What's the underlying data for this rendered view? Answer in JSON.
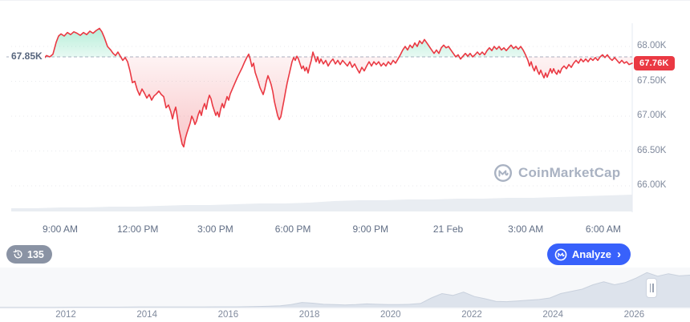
{
  "chart_data": {
    "type": "line",
    "symbol_watermark": "CoinMarketCap",
    "baseline": {
      "value": 67850,
      "label": "67.85K"
    },
    "current": {
      "value": 67760,
      "label": "67.76K"
    },
    "y_axis": {
      "ticks": [
        {
          "value": 68000,
          "label": "68.00K"
        },
        {
          "value": 67500,
          "label": "67.50K"
        },
        {
          "value": 67000,
          "label": "67.00K"
        },
        {
          "value": 66500,
          "label": "66.50K"
        },
        {
          "value": 66000,
          "label": "66.00K"
        }
      ],
      "range": [
        65900,
        68350
      ]
    },
    "x_axis": {
      "ticks": [
        "9:00 AM",
        "12:00 PM",
        "3:00 PM",
        "6:00 PM",
        "9:00 PM",
        "21 Feb",
        "3:00 AM",
        "6:00 AM"
      ]
    },
    "price_points": [
      [
        55,
        67830
      ],
      [
        58,
        67870
      ],
      [
        62,
        67850
      ],
      [
        66,
        67890
      ],
      [
        70,
        68060
      ],
      [
        73,
        68150
      ],
      [
        76,
        68180
      ],
      [
        80,
        68150
      ],
      [
        84,
        68200
      ],
      [
        88,
        68170
      ],
      [
        92,
        68210
      ],
      [
        96,
        68190
      ],
      [
        100,
        68160
      ],
      [
        104,
        68200
      ],
      [
        108,
        68170
      ],
      [
        112,
        68220
      ],
      [
        116,
        68190
      ],
      [
        120,
        68230
      ],
      [
        124,
        68260
      ],
      [
        127,
        68210
      ],
      [
        130,
        68130
      ],
      [
        134,
        68000
      ],
      [
        138,
        67950
      ],
      [
        141,
        67900
      ],
      [
        144,
        67870
      ],
      [
        147,
        67920
      ],
      [
        150,
        67860
      ],
      [
        153,
        67800
      ],
      [
        156,
        67840
      ],
      [
        159,
        67780
      ],
      [
        162,
        67650
      ],
      [
        165,
        67480
      ],
      [
        168,
        67500
      ],
      [
        171,
        67380
      ],
      [
        174,
        67300
      ],
      [
        177,
        67390
      ],
      [
        180,
        67330
      ],
      [
        183,
        67260
      ],
      [
        186,
        67310
      ],
      [
        189,
        67230
      ],
      [
        192,
        67290
      ],
      [
        195,
        67320
      ],
      [
        198,
        67360
      ],
      [
        201,
        67310
      ],
      [
        204,
        67280
      ],
      [
        207,
        67120
      ],
      [
        210,
        67160
      ],
      [
        213,
        67060
      ],
      [
        215,
        66960
      ],
      [
        217,
        67060
      ],
      [
        219,
        67130
      ],
      [
        221,
        66990
      ],
      [
        223,
        66820
      ],
      [
        225,
        66710
      ],
      [
        227,
        66600
      ],
      [
        229,
        66560
      ],
      [
        231,
        66680
      ],
      [
        233,
        66760
      ],
      [
        235,
        66830
      ],
      [
        237,
        66900
      ],
      [
        239,
        67000
      ],
      [
        241,
        66950
      ],
      [
        243,
        66880
      ],
      [
        245,
        66930
      ],
      [
        247,
        67020
      ],
      [
        249,
        67080
      ],
      [
        251,
        67010
      ],
      [
        253,
        67120
      ],
      [
        255,
        67180
      ],
      [
        257,
        67100
      ],
      [
        259,
        67220
      ],
      [
        261,
        67300
      ],
      [
        263,
        67250
      ],
      [
        265,
        67150
      ],
      [
        267,
        67080
      ],
      [
        269,
        67010
      ],
      [
        271,
        67060
      ],
      [
        273,
        66990
      ],
      [
        275,
        67100
      ],
      [
        277,
        67180
      ],
      [
        279,
        67120
      ],
      [
        281,
        67200
      ],
      [
        283,
        67280
      ],
      [
        285,
        67230
      ],
      [
        287,
        67320
      ],
      [
        290,
        67400
      ],
      [
        293,
        67480
      ],
      [
        296,
        67560
      ],
      [
        299,
        67630
      ],
      [
        302,
        67700
      ],
      [
        305,
        67780
      ],
      [
        308,
        67850
      ],
      [
        310,
        67890
      ],
      [
        312,
        67810
      ],
      [
        314,
        67710
      ],
      [
        316,
        67760
      ],
      [
        318,
        67630
      ],
      [
        320,
        67560
      ],
      [
        322,
        67490
      ],
      [
        324,
        67410
      ],
      [
        326,
        67360
      ],
      [
        328,
        67310
      ],
      [
        330,
        67390
      ],
      [
        332,
        67500
      ],
      [
        334,
        67580
      ],
      [
        336,
        67520
      ],
      [
        338,
        67450
      ],
      [
        340,
        67350
      ],
      [
        342,
        67210
      ],
      [
        344,
        67110
      ],
      [
        346,
        67010
      ],
      [
        348,
        66950
      ],
      [
        350,
        66990
      ],
      [
        352,
        67110
      ],
      [
        354,
        67230
      ],
      [
        356,
        67360
      ],
      [
        358,
        67480
      ],
      [
        360,
        67580
      ],
      [
        362,
        67680
      ],
      [
        364,
        67780
      ],
      [
        366,
        67840
      ],
      [
        368,
        67800
      ],
      [
        370,
        67860
      ],
      [
        372,
        67820
      ],
      [
        374,
        67750
      ],
      [
        376,
        67680
      ],
      [
        378,
        67720
      ],
      [
        380,
        67650
      ],
      [
        382,
        67700
      ],
      [
        384,
        67620
      ],
      [
        386,
        67720
      ],
      [
        388,
        67800
      ],
      [
        390,
        67920
      ],
      [
        392,
        67850
      ],
      [
        394,
        67780
      ],
      [
        396,
        67850
      ],
      [
        398,
        67760
      ],
      [
        400,
        67820
      ],
      [
        403,
        67750
      ],
      [
        406,
        67800
      ],
      [
        409,
        67720
      ],
      [
        412,
        67780
      ],
      [
        415,
        67820
      ],
      [
        418,
        67750
      ],
      [
        421,
        67800
      ],
      [
        424,
        67740
      ],
      [
        427,
        67800
      ],
      [
        430,
        67760
      ],
      [
        433,
        67720
      ],
      [
        436,
        67780
      ],
      [
        439,
        67700
      ],
      [
        442,
        67750
      ],
      [
        445,
        67680
      ],
      [
        448,
        67620
      ],
      [
        451,
        67700
      ],
      [
        454,
        67650
      ],
      [
        457,
        67720
      ],
      [
        460,
        67780
      ],
      [
        463,
        67720
      ],
      [
        466,
        67780
      ],
      [
        469,
        67740
      ],
      [
        472,
        67780
      ],
      [
        475,
        67720
      ],
      [
        478,
        67760
      ],
      [
        481,
        67720
      ],
      [
        484,
        67780
      ],
      [
        487,
        67740
      ],
      [
        490,
        67800
      ],
      [
        493,
        67760
      ],
      [
        496,
        67820
      ],
      [
        499,
        67880
      ],
      [
        502,
        67950
      ],
      [
        505,
        68000
      ],
      [
        508,
        67950
      ],
      [
        511,
        68020
      ],
      [
        514,
        67980
      ],
      [
        517,
        68050
      ],
      [
        520,
        68000
      ],
      [
        523,
        68080
      ],
      [
        526,
        68040
      ],
      [
        529,
        68100
      ],
      [
        532,
        68050
      ],
      [
        535,
        68000
      ],
      [
        538,
        67950
      ],
      [
        541,
        67900
      ],
      [
        544,
        67950
      ],
      [
        547,
        67900
      ],
      [
        550,
        67980
      ],
      [
        553,
        68020
      ],
      [
        556,
        67980
      ],
      [
        559,
        68000
      ],
      [
        562,
        67950
      ],
      [
        565,
        67900
      ],
      [
        568,
        67850
      ],
      [
        571,
        67880
      ],
      [
        574,
        67820
      ],
      [
        577,
        67860
      ],
      [
        580,
        67900
      ],
      [
        583,
        67860
      ],
      [
        586,
        67900
      ],
      [
        589,
        67850
      ],
      [
        592,
        67880
      ],
      [
        595,
        67920
      ],
      [
        598,
        67880
      ],
      [
        601,
        67920
      ],
      [
        604,
        67880
      ],
      [
        607,
        67940
      ],
      [
        610,
        67980
      ],
      [
        613,
        67940
      ],
      [
        616,
        68000
      ],
      [
        619,
        67960
      ],
      [
        622,
        68000
      ],
      [
        625,
        67950
      ],
      [
        628,
        67980
      ],
      [
        631,
        67940
      ],
      [
        634,
        67980
      ],
      [
        637,
        68020
      ],
      [
        640,
        67970
      ],
      [
        643,
        68000
      ],
      [
        646,
        67960
      ],
      [
        649,
        68000
      ],
      [
        652,
        67950
      ],
      [
        655,
        67880
      ],
      [
        658,
        67800
      ],
      [
        660,
        67720
      ],
      [
        662,
        67780
      ],
      [
        664,
        67700
      ],
      [
        666,
        67650
      ],
      [
        668,
        67720
      ],
      [
        670,
        67650
      ],
      [
        672,
        67600
      ],
      [
        674,
        67660
      ],
      [
        676,
        67600
      ],
      [
        678,
        67550
      ],
      [
        680,
        67620
      ],
      [
        682,
        67560
      ],
      [
        684,
        67620
      ],
      [
        686,
        67680
      ],
      [
        688,
        67620
      ],
      [
        690,
        67680
      ],
      [
        692,
        67630
      ],
      [
        694,
        67600
      ],
      [
        696,
        67660
      ],
      [
        698,
        67620
      ],
      [
        700,
        67680
      ],
      [
        703,
        67720
      ],
      [
        706,
        67680
      ],
      [
        709,
        67740
      ],
      [
        712,
        67700
      ],
      [
        715,
        67760
      ],
      [
        718,
        67800
      ],
      [
        721,
        67760
      ],
      [
        724,
        67820
      ],
      [
        727,
        67780
      ],
      [
        730,
        67820
      ],
      [
        733,
        67780
      ],
      [
        736,
        67830
      ],
      [
        739,
        67800
      ],
      [
        742,
        67840
      ],
      [
        745,
        67800
      ],
      [
        748,
        67850
      ],
      [
        751,
        67880
      ],
      [
        754,
        67840
      ],
      [
        757,
        67880
      ],
      [
        760,
        67830
      ],
      [
        763,
        67800
      ],
      [
        766,
        67840
      ],
      [
        769,
        67800
      ],
      [
        772,
        67760
      ],
      [
        775,
        67800
      ],
      [
        778,
        67760
      ],
      [
        781,
        67780
      ],
      [
        784,
        67740
      ],
      [
        788,
        67760
      ]
    ],
    "volume_profile": [
      4,
      4,
      5,
      5,
      6,
      6,
      7,
      8,
      8,
      9,
      10,
      10,
      11,
      13,
      14,
      14,
      15,
      15,
      16,
      16,
      17,
      17,
      18,
      19,
      20,
      21
    ],
    "minimap": {
      "years": [
        "2012",
        "2014",
        "2016",
        "2018",
        "2020",
        "2022",
        "2024",
        "2026"
      ],
      "values": [
        0.5,
        0.5,
        0.5,
        0.5,
        0.5,
        0.5,
        0.8,
        1,
        1,
        1,
        1,
        1,
        1.2,
        1.5,
        1.5,
        1.5,
        1.5,
        1.5,
        1.5,
        1.8,
        2,
        2,
        2,
        2.5,
        3,
        4,
        5,
        8,
        14,
        12,
        9,
        8,
        7,
        8,
        10,
        9,
        8,
        8,
        9,
        11,
        26,
        38,
        33,
        42,
        30,
        24,
        17,
        16,
        18,
        20,
        22,
        26,
        38,
        44,
        50,
        62,
        70,
        62,
        68,
        80,
        95,
        85,
        92,
        86,
        88
      ]
    },
    "colors": {
      "line": "#ea3943",
      "up": "#16c784",
      "down": "#ea3943",
      "baseline_dash": "#aab2c0",
      "grid": "#808a9d",
      "axis_text": "#808a9d",
      "volume_fill": "#e9edf2",
      "minimap_fill": "#dde3ec",
      "minimap_edge": "#c9d1dd",
      "badge_bg": "#ea3943",
      "analyze_bg": "#3861fb"
    }
  },
  "toolbar": {
    "history_count": "135",
    "analyze_label": "Analyze",
    "analyze_chevron": "›"
  }
}
